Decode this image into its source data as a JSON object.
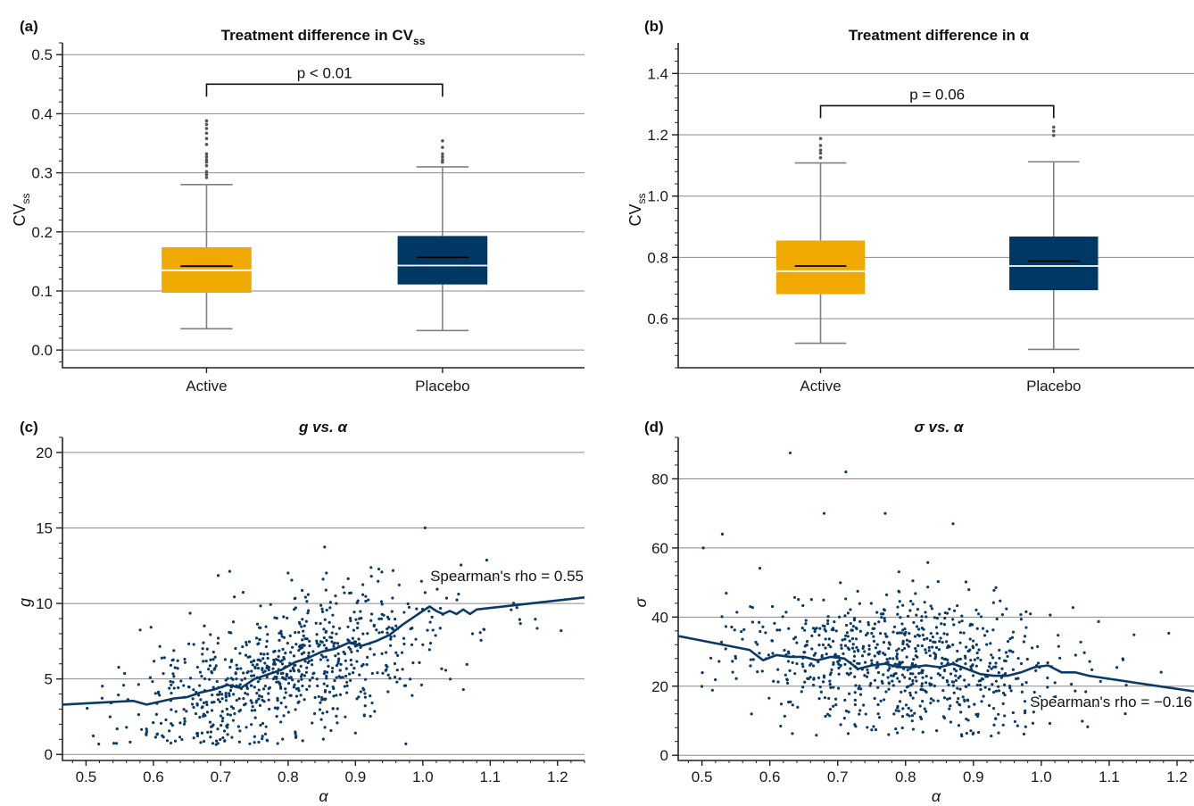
{
  "colors": {
    "active": "#f0a900",
    "placebo": "#003865",
    "points": "#0b3a66",
    "trend": "#0b3a66",
    "whisker": "#808080",
    "outlier": "#555555",
    "mean_line": "#000000",
    "median_line": "#ffffff"
  },
  "chart_data": [
    {
      "panel": "(a)",
      "type": "box",
      "title_main": "Treatment difference in CV",
      "title_sub": "ss",
      "ylabel_main": "CV",
      "ylabel_sub": "ss",
      "categories": [
        "Active",
        "Placebo"
      ],
      "ylim": [
        -0.03,
        0.52
      ],
      "yticks": [
        "0.0",
        "0.1",
        "0.2",
        "0.3",
        "0.4",
        "0.5"
      ],
      "ytick_values": [
        0.0,
        0.1,
        0.2,
        0.3,
        0.4,
        0.5
      ],
      "grid": true,
      "boxes": [
        {
          "name": "Active",
          "whisker_low": 0.036,
          "q1": 0.097,
          "median": 0.135,
          "mean": 0.142,
          "q3": 0.174,
          "whisker_high": 0.28,
          "outliers": [
            0.292,
            0.297,
            0.302,
            0.312,
            0.318,
            0.322,
            0.327,
            0.332,
            0.348,
            0.358,
            0.367,
            0.375,
            0.382,
            0.388
          ]
        },
        {
          "name": "Placebo",
          "whisker_low": 0.033,
          "q1": 0.111,
          "median": 0.143,
          "mean": 0.157,
          "q3": 0.193,
          "whisker_high": 0.31,
          "outliers": [
            0.318,
            0.322,
            0.327,
            0.332,
            0.343,
            0.354
          ]
        }
      ],
      "bracket": {
        "y": 0.45,
        "label": "p < 0.01"
      }
    },
    {
      "panel": "(b)",
      "type": "box",
      "title_main": "Treatment difference in α",
      "ylabel_main": "CV",
      "ylabel_sub": "ss",
      "categories": [
        "Active",
        "Placebo"
      ],
      "ylim": [
        0.44,
        1.5
      ],
      "yticks": [
        "0.6",
        "0.8",
        "1.0",
        "1.2",
        "1.4"
      ],
      "ytick_values": [
        0.6,
        0.8,
        1.0,
        1.2,
        1.4
      ],
      "grid": true,
      "boxes": [
        {
          "name": "Active",
          "whisker_low": 0.52,
          "q1": 0.68,
          "median": 0.755,
          "mean": 0.772,
          "q3": 0.855,
          "whisker_high": 1.108,
          "outliers": [
            1.125,
            1.14,
            1.15,
            1.165,
            1.188
          ]
        },
        {
          "name": "Placebo",
          "whisker_low": 0.5,
          "q1": 0.693,
          "median": 0.772,
          "mean": 0.788,
          "q3": 0.868,
          "whisker_high": 1.112,
          "outliers": [
            1.198,
            1.212,
            1.225
          ]
        }
      ],
      "bracket": {
        "y": 1.295,
        "label": "p = 0.06"
      }
    },
    {
      "panel": "(c)",
      "type": "scatter",
      "title_main": "g vs. α",
      "xlabel": "α",
      "ylabel": "g",
      "xlim": [
        0.465,
        1.24
      ],
      "ylim": [
        -0.4,
        21.0
      ],
      "xticks": [
        "0.5",
        "0.6",
        "0.7",
        "0.8",
        "0.9",
        "1.0",
        "1.1",
        "1.2"
      ],
      "xtick_values": [
        0.5,
        0.6,
        0.7,
        0.8,
        0.9,
        1.0,
        1.1,
        1.2
      ],
      "yticks": [
        "0",
        "5",
        "10",
        "15",
        "20"
      ],
      "ytick_values": [
        0,
        5,
        10,
        15,
        20
      ],
      "grid": true,
      "annotation": "Spearman's rho = 0.55",
      "seed": 7,
      "n_points": 820,
      "cloud": {
        "x_mean": 0.8,
        "x_sd": 0.12,
        "x_min": 0.49,
        "x_max": 1.23,
        "y_base": 5.6,
        "y_slope": 12.5,
        "y_sd": 2.3,
        "y_min": 0.6
      },
      "highlights": [
        [
          0.626,
          3.6
        ],
        [
          0.663,
          2.7
        ]
      ],
      "trend": {
        "x": [
          0.465,
          0.57,
          0.59,
          0.61,
          0.63,
          0.65,
          0.67,
          0.69,
          0.71,
          0.73,
          0.75,
          0.77,
          0.79,
          0.81,
          0.83,
          0.85,
          0.87,
          0.89,
          0.91,
          0.93,
          0.95,
          0.97,
          0.99,
          1.0,
          1.01,
          1.02,
          1.03,
          1.04,
          1.05,
          1.06,
          1.07,
          1.08,
          1.24
        ],
        "y": [
          3.3,
          3.55,
          3.3,
          3.5,
          3.7,
          3.8,
          4.1,
          4.3,
          4.6,
          4.4,
          5.0,
          5.3,
          5.6,
          6.1,
          6.4,
          6.8,
          7.0,
          7.4,
          7.2,
          7.5,
          7.9,
          8.6,
          9.2,
          9.5,
          9.8,
          9.5,
          9.3,
          9.5,
          9.3,
          9.6,
          9.3,
          9.6,
          10.4
        ]
      }
    },
    {
      "panel": "(d)",
      "type": "scatter",
      "title_main": "σ vs. α",
      "xlabel": "α",
      "ylabel": "σ",
      "xlim": [
        0.465,
        1.225
      ],
      "ylim": [
        -1.5,
        92.0
      ],
      "xticks": [
        "0.5",
        "0.6",
        "0.7",
        "0.8",
        "0.9",
        "1.0",
        "1.1",
        "1.2"
      ],
      "xtick_values": [
        0.5,
        0.6,
        0.7,
        0.8,
        0.9,
        1.0,
        1.1,
        1.2
      ],
      "yticks": [
        "0",
        "20",
        "40",
        "60",
        "80"
      ],
      "ytick_values": [
        0,
        20,
        40,
        60,
        80
      ],
      "grid": true,
      "annotation": "Spearman's rho = −0.16",
      "seed": 19,
      "n_points": 820,
      "cloud": {
        "x_mean": 0.8,
        "x_sd": 0.12,
        "x_min": 0.49,
        "x_max": 1.22,
        "y_base": 27.0,
        "y_slope": -14.0,
        "y_sd": 9.5,
        "y_min": 5.5
      },
      "highlights": [
        [
          0.63,
          87.5
        ],
        [
          0.712,
          82.0
        ],
        [
          0.502,
          60.0
        ],
        [
          0.53,
          64.0
        ],
        [
          0.68,
          70.0
        ],
        [
          0.77,
          70.0
        ],
        [
          0.87,
          67.0
        ]
      ],
      "trend": {
        "x": [
          0.465,
          0.57,
          0.59,
          0.61,
          0.63,
          0.65,
          0.67,
          0.69,
          0.71,
          0.73,
          0.75,
          0.77,
          0.79,
          0.81,
          0.83,
          0.85,
          0.87,
          0.89,
          0.91,
          0.93,
          0.95,
          0.97,
          0.99,
          1.01,
          1.03,
          1.05,
          1.07,
          1.225
        ],
        "y": [
          34.5,
          30.5,
          27.5,
          29.0,
          28.5,
          28.5,
          27.5,
          28.5,
          28.0,
          25.0,
          26.0,
          26.5,
          25.5,
          25.5,
          26.0,
          25.5,
          26.5,
          25.0,
          23.5,
          23.0,
          23.0,
          24.0,
          25.5,
          26.0,
          24.0,
          24.0,
          23.0,
          18.5
        ]
      }
    }
  ]
}
